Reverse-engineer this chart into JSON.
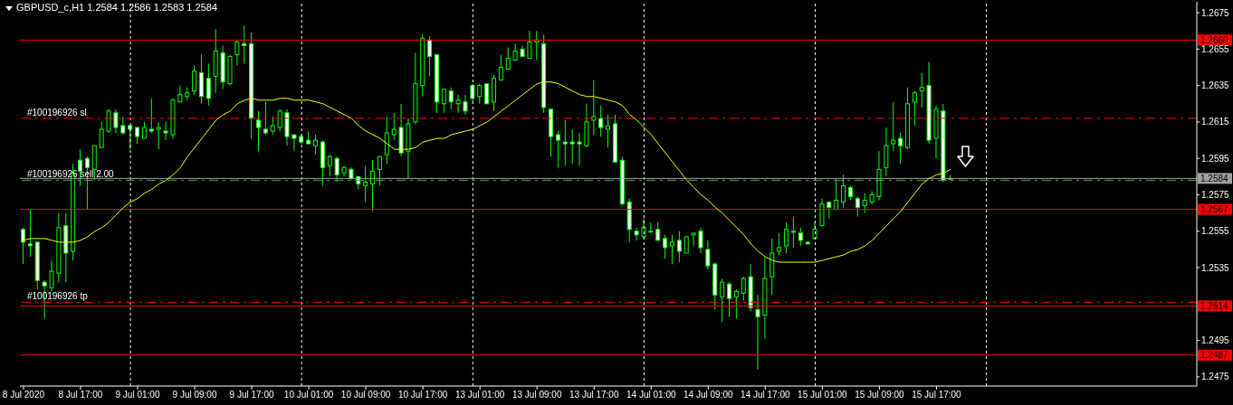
{
  "chart_data": {
    "type": "candlestick",
    "title": "GBPUSD_c,H1 1.2584 1.2586 1.2583 1.2584",
    "color": "#00ff00",
    "categories": [
      "8 Jul 2020",
      null,
      null,
      null,
      null,
      null,
      null,
      null,
      "8 Jul 17:00",
      null,
      null,
      null,
      null,
      null,
      null,
      null,
      "9 Jul 01:00",
      null,
      null,
      null,
      null,
      null,
      null,
      null,
      "9 Jul 09:00",
      null,
      null,
      null,
      null,
      null,
      null,
      null,
      "9 Jul 17:00",
      null,
      null,
      null,
      null,
      null,
      null,
      null,
      "10 Jul 01:00",
      null,
      null,
      null,
      null,
      null,
      null,
      null,
      "10 Jul 09:00",
      null,
      null,
      null,
      null,
      null,
      null,
      null,
      "10 Jul 17:00",
      null,
      null,
      null,
      null,
      null,
      null,
      null,
      "13 Jul 01:00",
      null,
      null,
      null,
      null,
      null,
      null,
      null,
      "13 Jul 09:00",
      null,
      null,
      null,
      null,
      null,
      null,
      null,
      "13 Jul 17:00",
      null,
      null,
      null,
      null,
      null,
      null,
      null,
      "14 Jul 01:00",
      null,
      null,
      null,
      null,
      null,
      null,
      null,
      "14 Jul 09:00",
      null,
      null,
      null,
      null,
      null,
      null,
      null,
      "14 Jul 17:00",
      null,
      null,
      null,
      null,
      null,
      null,
      null,
      "15 Jul 01:00",
      null,
      null,
      null,
      null,
      null,
      null,
      null,
      "15 Jul 09:00",
      null,
      null,
      null,
      null,
      null,
      null,
      null,
      "15 Jul 17:00",
      null,
      null,
      null,
      null,
      null,
      null,
      null,
      null,
      null,
      null,
      null,
      null,
      null,
      null,
      null,
      null,
      null,
      null,
      null,
      null,
      null,
      null,
      null,
      null,
      null,
      null,
      null,
      null,
      null,
      null,
      null,
      null,
      null,
      null,
      null,
      null
    ],
    "ohlc": [
      [
        1.2556,
        1.2557,
        1.2537,
        1.2549
      ],
      [
        1.2548,
        1.2567,
        1.2541,
        1.2547
      ],
      [
        1.2549,
        1.2549,
        1.2523,
        1.2528
      ],
      [
        1.2527,
        1.2528,
        1.2507,
        1.2525
      ],
      [
        1.2524,
        1.2539,
        1.2522,
        1.2533
      ],
      [
        1.2532,
        1.2565,
        1.2527,
        1.2557
      ],
      [
        1.2558,
        1.2565,
        1.2527,
        1.2543
      ],
      [
        1.2544,
        1.2592,
        1.2539,
        1.2587
      ],
      [
        1.2594,
        1.26,
        1.258,
        1.2588
      ],
      [
        1.2595,
        1.2596,
        1.2567,
        1.259
      ],
      [
        1.2589,
        1.2602,
        1.2583,
        1.2602
      ],
      [
        1.2601,
        1.2615,
        1.2601,
        1.2611
      ],
      [
        1.261,
        1.2622,
        1.2609,
        1.2621
      ],
      [
        1.262,
        1.2622,
        1.2609,
        1.2612
      ],
      [
        1.2613,
        1.2618,
        1.2608,
        1.2609
      ],
      [
        1.2613,
        1.2613,
        1.26,
        1.2611
      ],
      [
        1.2612,
        1.2612,
        1.2603,
        1.2607
      ],
      [
        1.2606,
        1.2615,
        1.2606,
        1.2612
      ],
      [
        1.2611,
        1.2628,
        1.2609,
        1.261
      ],
      [
        1.2611,
        1.2615,
        1.26,
        1.2612
      ],
      [
        1.261,
        1.2615,
        1.2605,
        1.2609
      ],
      [
        1.2608,
        1.2628,
        1.2606,
        1.2627
      ],
      [
        1.2626,
        1.2635,
        1.2626,
        1.263
      ],
      [
        1.2629,
        1.2634,
        1.2627,
        1.2631
      ],
      [
        1.2632,
        1.2646,
        1.263,
        1.2643
      ],
      [
        1.2642,
        1.2652,
        1.2625,
        1.2629
      ],
      [
        1.2639,
        1.2647,
        1.2624,
        1.2628
      ],
      [
        1.264,
        1.2666,
        1.2631,
        1.2654
      ],
      [
        1.2653,
        1.2657,
        1.2633,
        1.2637
      ],
      [
        1.2636,
        1.2652,
        1.2635,
        1.2651
      ],
      [
        1.2652,
        1.266,
        1.2646,
        1.2659
      ],
      [
        1.2658,
        1.2668,
        1.2647,
        1.2657
      ],
      [
        1.2658,
        1.2664,
        1.2606,
        1.2617
      ],
      [
        1.2616,
        1.2621,
        1.2599,
        1.2612
      ],
      [
        1.2611,
        1.2626,
        1.2608,
        1.2609
      ],
      [
        1.261,
        1.2618,
        1.2608,
        1.2613
      ],
      [
        1.2612,
        1.2622,
        1.261,
        1.2621
      ],
      [
        1.262,
        1.2622,
        1.2602,
        1.2607
      ],
      [
        1.2608,
        1.2608,
        1.2599,
        1.2606
      ],
      [
        1.2607,
        1.2608,
        1.2603,
        1.2604
      ],
      [
        1.2605,
        1.261,
        1.2603,
        1.2603
      ],
      [
        1.2602,
        1.2608,
        1.2597,
        1.2605
      ],
      [
        1.2604,
        1.2605,
        1.258,
        1.259
      ],
      [
        1.2591,
        1.2597,
        1.2585,
        1.2596
      ],
      [
        1.2595,
        1.2596,
        1.2582,
        1.2586
      ],
      [
        1.2587,
        1.2591,
        1.2585,
        1.259
      ],
      [
        1.2589,
        1.259,
        1.2583,
        1.2584
      ],
      [
        1.2585,
        1.2585,
        1.2578,
        1.2581
      ],
      [
        1.258,
        1.2591,
        1.2571,
        1.2582
      ],
      [
        1.2581,
        1.2594,
        1.2566,
        1.2588
      ],
      [
        1.2589,
        1.2596,
        1.258,
        1.2596
      ],
      [
        1.2597,
        1.2618,
        1.2592,
        1.2609
      ],
      [
        1.2608,
        1.262,
        1.2605,
        1.2611
      ],
      [
        1.2612,
        1.2625,
        1.2596,
        1.2598
      ],
      [
        1.2599,
        1.2617,
        1.2584,
        1.2614
      ],
      [
        1.2615,
        1.2653,
        1.2614,
        1.2636
      ],
      [
        1.2635,
        1.2663,
        1.2629,
        1.2661
      ],
      [
        1.266,
        1.2662,
        1.264,
        1.2651
      ],
      [
        1.2652,
        1.2652,
        1.262,
        1.2626
      ],
      [
        1.2625,
        1.2633,
        1.262,
        1.2633
      ],
      [
        1.2632,
        1.2634,
        1.2622,
        1.2626
      ],
      [
        1.2625,
        1.263,
        1.262,
        1.2627
      ],
      [
        1.2626,
        1.263,
        1.2619,
        1.2621
      ],
      [
        1.2635,
        1.2636,
        1.2626,
        1.2628
      ],
      [
        1.2629,
        1.2636,
        1.2625,
        1.2635
      ],
      [
        1.2636,
        1.2636,
        1.2625,
        1.2625
      ],
      [
        1.2626,
        1.2641,
        1.2621,
        1.2639
      ],
      [
        1.2638,
        1.2652,
        1.2638,
        1.2645
      ],
      [
        1.2644,
        1.2656,
        1.2644,
        1.265
      ],
      [
        1.2649,
        1.2658,
        1.2649,
        1.2654
      ],
      [
        1.2655,
        1.2657,
        1.2651,
        1.2651
      ],
      [
        1.265,
        1.2665,
        1.265,
        1.2659
      ],
      [
        1.2659,
        1.2665,
        1.2649,
        1.266
      ],
      [
        1.2658,
        1.2663,
        1.262,
        1.2623
      ],
      [
        1.2622,
        1.2622,
        1.2596,
        1.2607
      ],
      [
        1.2608,
        1.261,
        1.259,
        1.2605
      ],
      [
        1.2604,
        1.2616,
        1.2591,
        1.2603
      ],
      [
        1.2604,
        1.2611,
        1.2592,
        1.2603
      ],
      [
        1.2604,
        1.2609,
        1.2591,
        1.2603
      ],
      [
        1.2602,
        1.2625,
        1.2601,
        1.2615
      ],
      [
        1.2616,
        1.2638,
        1.2608,
        1.2618
      ],
      [
        1.2617,
        1.2624,
        1.2607,
        1.2612
      ],
      [
        1.2611,
        1.2619,
        1.2601,
        1.2613
      ],
      [
        1.2614,
        1.2619,
        1.2593,
        1.2593
      ],
      [
        1.2594,
        1.2596,
        1.2569,
        1.257
      ],
      [
        1.2571,
        1.2573,
        1.2549,
        1.2556
      ],
      [
        1.2555,
        1.2557,
        1.255,
        1.2553
      ],
      [
        1.2552,
        1.2562,
        1.2551,
        1.2557
      ],
      [
        1.2555,
        1.256,
        1.2555,
        1.2555
      ],
      [
        1.2556,
        1.256,
        1.255,
        1.255
      ],
      [
        1.2551,
        1.2553,
        1.254,
        1.2546
      ],
      [
        1.2547,
        1.2553,
        1.2537,
        1.2549
      ],
      [
        1.255,
        1.2555,
        1.2538,
        1.2544
      ],
      [
        1.2543,
        1.2552,
        1.2543,
        1.2552
      ],
      [
        1.2553,
        1.2554,
        1.2547,
        1.2554
      ],
      [
        1.2555,
        1.2557,
        1.2543,
        1.2546
      ],
      [
        1.2545,
        1.255,
        1.2534,
        1.2536
      ],
      [
        1.2537,
        1.2538,
        1.2512,
        1.252
      ],
      [
        1.2519,
        1.2529,
        1.2505,
        1.2527
      ],
      [
        1.2526,
        1.2527,
        1.2508,
        1.2518
      ],
      [
        1.2519,
        1.2523,
        1.2507,
        1.2522
      ],
      [
        1.2521,
        1.253,
        1.2517,
        1.2529
      ],
      [
        1.253,
        1.2537,
        1.2511,
        1.2513
      ],
      [
        1.2512,
        1.252,
        1.2479,
        1.2508
      ],
      [
        1.2509,
        1.2541,
        1.2496,
        1.2529
      ],
      [
        1.253,
        1.2551,
        1.252,
        1.2543
      ],
      [
        1.2544,
        1.2554,
        1.2542,
        1.2546
      ],
      [
        1.2547,
        1.256,
        1.2543,
        1.2556
      ],
      [
        1.2555,
        1.2563,
        1.2546,
        1.2555
      ],
      [
        1.2554,
        1.2557,
        1.2547,
        1.255
      ],
      [
        1.2549,
        1.2549,
        1.2548,
        1.2548
      ],
      [
        1.2551,
        1.256,
        1.2551,
        1.2556
      ],
      [
        1.2558,
        1.2573,
        1.2558,
        1.257
      ],
      [
        1.2571,
        1.2571,
        1.2562,
        1.2568
      ],
      [
        1.2567,
        1.2584,
        1.2567,
        1.2572
      ],
      [
        1.2571,
        1.2586,
        1.2568,
        1.258
      ],
      [
        1.2579,
        1.258,
        1.2572,
        1.2574
      ],
      [
        1.2573,
        1.2574,
        1.2563,
        1.2568
      ],
      [
        1.2569,
        1.2576,
        1.2565,
        1.2572
      ],
      [
        1.2571,
        1.2577,
        1.257,
        1.2575
      ],
      [
        1.2574,
        1.2599,
        1.2572,
        1.2589
      ],
      [
        1.259,
        1.2612,
        1.2585,
        1.2602
      ],
      [
        1.2603,
        1.2626,
        1.2599,
        1.2605
      ],
      [
        1.2606,
        1.2609,
        1.2592,
        1.2602
      ],
      [
        1.2601,
        1.2634,
        1.26,
        1.2625
      ],
      [
        1.2626,
        1.2632,
        1.2613,
        1.2631
      ],
      [
        1.2632,
        1.2642,
        1.2623,
        1.2634
      ],
      [
        1.2635,
        1.2648,
        1.2603,
        1.2605
      ],
      [
        1.2606,
        1.2624,
        1.2595,
        1.2622
      ],
      [
        1.2621,
        1.2625,
        1.2582,
        1.2583
      ],
      [
        1.2584,
        1.2586,
        1.2583,
        1.2584
      ],
      null,
      null,
      null,
      null,
      null,
      null,
      null,
      null,
      null,
      null,
      null,
      null,
      null,
      null,
      null,
      null,
      null,
      null,
      null,
      null,
      null,
      null,
      null,
      null,
      null,
      null,
      null,
      null,
      null,
      null,
      null,
      null,
      null,
      null
    ],
    "series": [
      {
        "type": "line",
        "color": "#ffff00",
        "values": [
          1.255,
          1.2551,
          1.2551,
          1.2551,
          1.255,
          1.2549,
          1.2549,
          1.2549,
          1.255,
          1.2552,
          1.2555,
          1.2557,
          1.256,
          1.2564,
          1.2568,
          1.2571,
          1.2573,
          1.2576,
          1.2578,
          1.2581,
          1.2583,
          1.2586,
          1.259,
          1.2596,
          1.2601,
          1.2606,
          1.2611,
          1.2616,
          1.2619,
          1.2621,
          1.2625,
          1.2627,
          1.2628,
          1.2627,
          1.2627,
          1.2627,
          1.2628,
          1.2628,
          1.2627,
          1.2627,
          1.2627,
          1.2626,
          1.2625,
          1.2623,
          1.2621,
          1.2619,
          1.2617,
          1.2613,
          1.261,
          1.2608,
          1.2606,
          1.2603,
          1.26,
          1.26,
          1.26,
          1.2601,
          1.2604,
          1.2605,
          1.2606,
          1.2606,
          1.2608,
          1.2609,
          1.261,
          1.2611,
          1.2613,
          1.2615,
          1.2618,
          1.2621,
          1.2624,
          1.2627,
          1.263,
          1.2633,
          1.2636,
          1.2637,
          1.2637,
          1.2636,
          1.2634,
          1.2632,
          1.263,
          1.2629,
          1.2629,
          1.2628,
          1.2627,
          1.2626,
          1.2624,
          1.2619,
          1.2616,
          1.2612,
          1.2608,
          1.2603,
          1.2598,
          1.2593,
          1.2588,
          1.2583,
          1.2579,
          1.2575,
          1.2572,
          1.2568,
          1.2565,
          1.2561,
          1.2557,
          1.2553,
          1.2548,
          1.2544,
          1.2541,
          1.2539,
          1.2538,
          1.2538,
          1.2538,
          1.2538,
          1.2538,
          1.2538,
          1.2539,
          1.254,
          1.2541,
          1.2542,
          1.2544,
          1.2545,
          1.2547,
          1.255,
          1.2554,
          1.2558,
          1.2562,
          1.2566,
          1.2571,
          1.2576,
          1.2581,
          1.2584,
          1.2586,
          1.2587,
          1.2589,
          null,
          null,
          null,
          null,
          null,
          null,
          null,
          null,
          null,
          null,
          null,
          null,
          null,
          null,
          null,
          null,
          null,
          null,
          null,
          null,
          null,
          null,
          null,
          null,
          null,
          null,
          null,
          null,
          null,
          null,
          null,
          null,
          null,
          null
        ]
      }
    ],
    "ylim": [
      1.247,
      1.2681
    ],
    "yticks": [
      1.2475,
      1.2495,
      1.2535,
      1.2555,
      1.2575,
      1.2595,
      1.2615,
      1.2635,
      1.2655,
      1.2675
    ],
    "ref_lines": [
      {
        "axis": "y",
        "value": 1.266,
        "label": "1.2660",
        "color": "#ff0000",
        "line_style": "solid"
      },
      {
        "axis": "y",
        "value": 1.2617,
        "label": "#100196926 sl",
        "color": "#ff0000",
        "line_style": "dashed"
      },
      {
        "axis": "y",
        "value": 1.2584,
        "label": "1.2584",
        "color": "#a0a0a0",
        "line_style": "solid"
      },
      {
        "axis": "y",
        "value": 1.2583,
        "label": "#100196926 sell 2.00",
        "color": "#3fa93f",
        "line_style": "dashed"
      },
      {
        "axis": "y",
        "value": 1.2567,
        "label": "1.2567",
        "color": "#ff0000",
        "line_style": "solid"
      },
      {
        "axis": "y",
        "value": 1.2516,
        "label": "#100196926 tp",
        "color": "#ff0000",
        "line_style": "dashed"
      },
      {
        "axis": "y",
        "value": 1.2514,
        "label": "1.2514",
        "color": "#ff0000",
        "line_style": "solid"
      },
      {
        "axis": "y",
        "value": 1.2487,
        "label": "1.2487",
        "color": "#ff0000",
        "line_style": "solid"
      }
    ]
  }
}
